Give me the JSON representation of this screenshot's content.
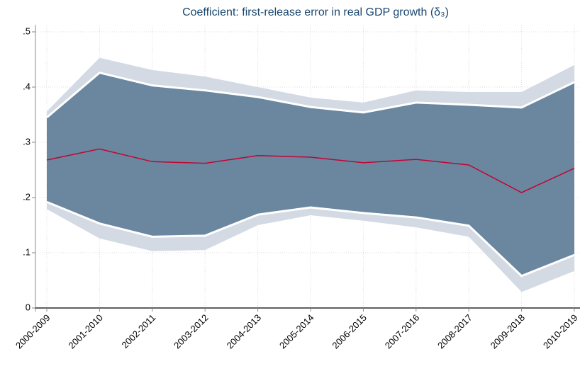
{
  "chart_data": {
    "type": "band-line",
    "title": "Coefficient: first-release error in real GDP growth (δ₃)",
    "categories": [
      "2000-2009",
      "2001-2010",
      "2002-2011",
      "2003-2012",
      "2004-2013",
      "2005-2014",
      "2006-2015",
      "2007-2016",
      "2008-2017",
      "2009-2018",
      "2010-2019"
    ],
    "values": [
      0.268,
      0.288,
      0.265,
      0.262,
      0.276,
      0.273,
      0.263,
      0.269,
      0.259,
      0.209,
      0.253
    ],
    "color": "#c10534",
    "band_inner": {
      "color": "#6a879f",
      "edge_color": "#ffffff",
      "low": [
        0.192,
        0.153,
        0.129,
        0.131,
        0.169,
        0.182,
        0.172,
        0.164,
        0.149,
        0.058,
        0.096
      ],
      "high": [
        0.345,
        0.426,
        0.403,
        0.394,
        0.382,
        0.364,
        0.354,
        0.372,
        0.368,
        0.363,
        0.409
      ]
    },
    "band_outer": {
      "color": "#d3dae3",
      "low": [
        0.179,
        0.126,
        0.103,
        0.105,
        0.15,
        0.168,
        0.158,
        0.146,
        0.129,
        0.029,
        0.067
      ],
      "high": [
        0.356,
        0.453,
        0.431,
        0.419,
        0.4,
        0.381,
        0.372,
        0.394,
        0.391,
        0.391,
        0.44
      ]
    },
    "ylim": [
      0,
      0.5
    ],
    "yticks": [
      0,
      {
        "value": 0.1,
        "label": ".1"
      },
      {
        "value": 0.2,
        "label": ".2"
      },
      {
        "value": 0.3,
        "label": ".3"
      },
      {
        "value": 0.4,
        "label": ".4"
      },
      {
        "value": 0.5,
        "label": ".5"
      }
    ],
    "grid": true
  }
}
